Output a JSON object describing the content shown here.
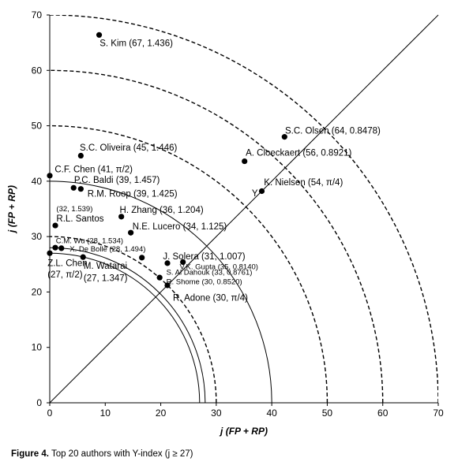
{
  "chart_data": {
    "type": "scatter",
    "title": "",
    "xlabel": "j (FP + RP)",
    "ylabel": "j (FP + RP)",
    "xlim": [
      0,
      70
    ],
    "ylim": [
      0,
      70
    ],
    "x_ticks": [
      "0",
      "10",
      "20",
      "30",
      "40",
      "50",
      "60",
      "70"
    ],
    "y_ticks": [
      "0",
      "10",
      "20",
      "30",
      "40",
      "50",
      "60",
      "70"
    ],
    "grid": false,
    "arcs": [
      {
        "radius": 27,
        "style": "solid"
      },
      {
        "radius": 28,
        "style": "solid"
      },
      {
        "radius": 30,
        "style": "dashed"
      },
      {
        "radius": 40,
        "style": "solid"
      },
      {
        "radius": 50,
        "style": "dashed"
      },
      {
        "radius": 60,
        "style": "dashed"
      },
      {
        "radius": 70,
        "style": "dashed"
      }
    ],
    "diagonal": {
      "from": [
        0,
        0
      ],
      "to": [
        70,
        70
      ],
      "label": "Y"
    },
    "points": [
      {
        "label": "S. Kim (67, 1.436)",
        "x": 8.9,
        "y": 66.4
      },
      {
        "label": "S.C. Olsen (64, 0.8478)",
        "x": 42.3,
        "y": 48.0
      },
      {
        "label": "A. Cloeckaert (56, 0.8921)",
        "x": 35.1,
        "y": 43.6
      },
      {
        "label": "K. Nielsen (54, π/4)",
        "x": 38.2,
        "y": 38.2
      },
      {
        "label": "S.C. Oliveira (45, 1.446)",
        "x": 5.6,
        "y": 44.6
      },
      {
        "label": "C.F. Chen (41, π/2)",
        "x": 0.0,
        "y": 41.0
      },
      {
        "label": "P.C. Baldi (39, 1.457)",
        "x": 4.3,
        "y": 38.8
      },
      {
        "label": "R.M. Roop (39, 1.425)",
        "x": 5.6,
        "y": 38.6
      },
      {
        "label": "H. Zhang (36, 1.204)",
        "x": 12.9,
        "y": 33.6
      },
      {
        "label": "N.E. Lucero (34, 1.125)",
        "x": 14.6,
        "y": 30.7
      },
      {
        "label": "(32, 1.539)",
        "x": 1.0,
        "y": 32.0
      },
      {
        "label": "R.L. Santos",
        "x": 1.0,
        "y": 32.0
      },
      {
        "label": "C.M. Wu (28, 1.534)",
        "x": 1.0,
        "y": 28.0
      },
      {
        "label": "X. De Bolle (28, 1.494)",
        "x": 2.1,
        "y": 27.9
      },
      {
        "label": "Z.L. Chen",
        "x": 0.0,
        "y": 27.0
      },
      {
        "label": "(27, π/2)",
        "x": 0.0,
        "y": 27.0
      },
      {
        "label": "M. Watarai",
        "x": 6.0,
        "y": 26.3
      },
      {
        "label": "(27, 1.347)",
        "x": 6.0,
        "y": 26.3
      },
      {
        "label": "J. Solera (31, 1.007)",
        "x": 16.6,
        "y": 26.2
      },
      {
        "label": "V.K. Gupta (35, 0.8140)",
        "x": 24.0,
        "y": 25.4
      },
      {
        "label": "S. Al Dahouk (33, 0.8761)",
        "x": 21.2,
        "y": 25.2
      },
      {
        "label": "R. Shome (30, 0.8520)",
        "x": 19.8,
        "y": 22.6
      },
      {
        "label": "R. Adone (30, π/4)",
        "x": 21.2,
        "y": 21.2
      }
    ],
    "annotations": [
      {
        "text": "S. Kim (67, 1.436)",
        "ax": 9.0,
        "ay": 64.4,
        "size": "normal"
      },
      {
        "text": "S.C. Olsen (64, 0.8478)",
        "ax": 42.4,
        "ay": 48.6,
        "size": "normal"
      },
      {
        "text": "A. Cloeckaert (56, 0.8921)",
        "ax": 35.3,
        "ay": 44.6,
        "size": "normal"
      },
      {
        "text": "K. Nielsen (54, π/4)",
        "ax": 38.6,
        "ay": 39.3,
        "size": "normal"
      },
      {
        "text": "S.C. Oliveira (45, 1.446)",
        "ax": 5.4,
        "ay": 45.5,
        "size": "normal"
      },
      {
        "text": "C.F. Chen (41, π/2)",
        "ax": 0.9,
        "ay": 41.6,
        "size": "normal"
      },
      {
        "text": "P.C. Baldi (39, 1.457)",
        "ax": 4.4,
        "ay": 39.7,
        "size": "normal"
      },
      {
        "text": "R.M. Roop (39, 1.425)",
        "ax": 6.8,
        "ay": 37.2,
        "size": "normal"
      },
      {
        "text": "(32, 1.539)",
        "ax": 1.2,
        "ay": 34.6,
        "size": "small"
      },
      {
        "text": "R.L. Santos",
        "ax": 1.2,
        "ay": 32.7,
        "size": "normal"
      },
      {
        "text": "H. Zhang (36, 1.204)",
        "ax": 12.6,
        "ay": 34.3,
        "size": "normal"
      },
      {
        "text": "N.E. Lucero (34, 1.125)",
        "ax": 14.9,
        "ay": 31.3,
        "size": "normal"
      },
      {
        "text": "C.M. Wu (28, 1.534)",
        "ax": 1.1,
        "ay": 28.8,
        "size": "small"
      },
      {
        "text": "X. De Bolle (28, 1.494)",
        "ax": 3.6,
        "ay": 27.3,
        "size": "small"
      },
      {
        "text": "Z.L. Chen",
        "ax": -0.4,
        "ay": 24.7,
        "size": "normal"
      },
      {
        "text": "(27, π/2)",
        "ax": -0.4,
        "ay": 22.6,
        "size": "normal"
      },
      {
        "text": "M. Watarai",
        "ax": 6.1,
        "ay": 24.2,
        "size": "normal"
      },
      {
        "text": "(27, 1.347)",
        "ax": 6.1,
        "ay": 22.0,
        "size": "normal"
      },
      {
        "text": "J. Solera (31, 1.007)",
        "ax": 20.4,
        "ay": 25.9,
        "size": "normal"
      },
      {
        "text": "V.K. Gupta (35, 0.8140)",
        "ax": 23.4,
        "ay": 24.1,
        "size": "small"
      },
      {
        "text": "S. Al Dahouk (33, 0.8761)",
        "ax": 21.0,
        "ay": 23.1,
        "size": "small"
      },
      {
        "text": "R. Shome (30, 0.8520)",
        "ax": 21.0,
        "ay": 21.4,
        "size": "small"
      },
      {
        "text": "R. Adone (30, π/4)",
        "ax": 22.2,
        "ay": 18.4,
        "size": "normal"
      }
    ]
  },
  "caption": {
    "label": "Figure 4.",
    "text": "Top 20 authors with Y-index (j ≥ 27)"
  }
}
